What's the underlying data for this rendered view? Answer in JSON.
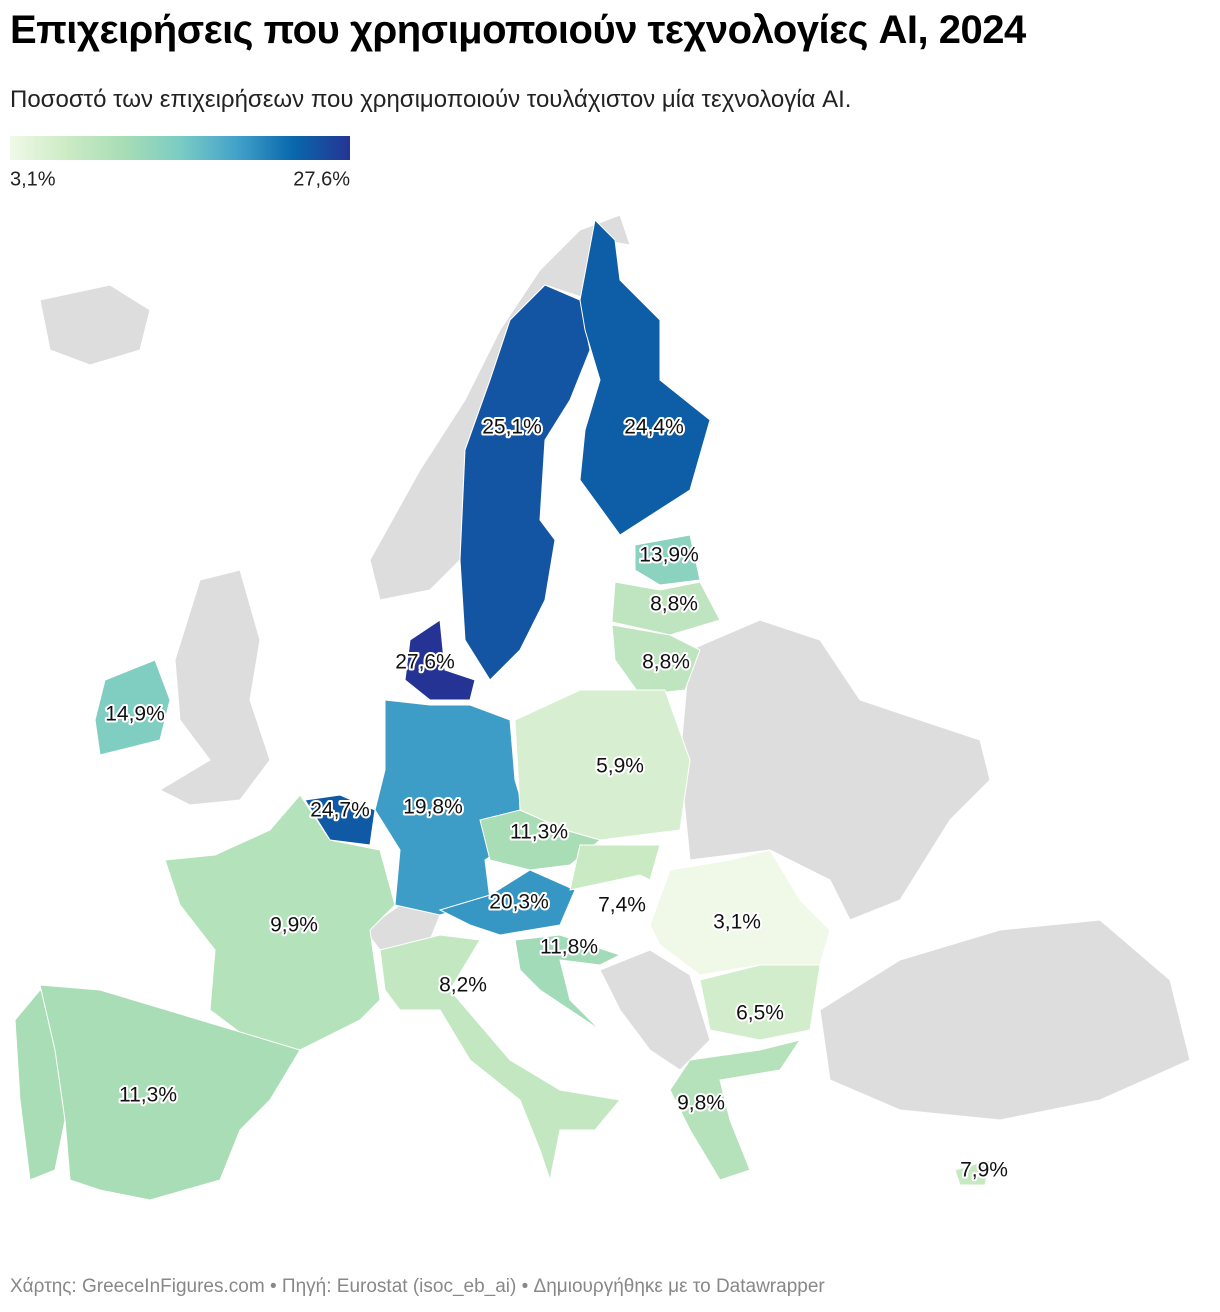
{
  "chart_data": {
    "type": "choropleth",
    "title": "Επιχειρήσεις που χρησιμοποιούν τεχνολογίες AI, 2024",
    "subtitle": "Ποσοστό των επιχειρήσεων που χρησιμοποιούν τουλάχιστον μία τεχνολογία AI.",
    "legend": {
      "range": [
        3.1,
        27.6
      ],
      "labels": [
        "3,1%",
        "27,6%"
      ]
    },
    "color_scale": [
      "#f0f9e8",
      "#ccebc5",
      "#a8ddb5",
      "#7bccc4",
      "#43a2ca",
      "#0868ac",
      "#253494"
    ],
    "no_data_color": "#dddddd",
    "values": [
      25.1,
      24.4,
      13.9,
      8.8,
      8.8,
      27.6,
      14.9,
      24.7,
      19.8,
      5.9,
      11.3,
      20.3,
      7.4,
      3.1,
      9.9,
      11.8,
      8.2,
      6.5,
      11.3,
      9.8,
      7.9
    ],
    "value_labels": [
      "25,1%",
      "24,4%",
      "13,9%",
      "8,8%",
      "8,8%",
      "27,6%",
      "14,9%",
      "24,7%",
      "19,8%",
      "5,9%",
      "11,3%",
      "20,3%",
      "7,4%",
      "3,1%",
      "9,9%",
      "11,8%",
      "8,2%",
      "6,5%",
      "11,3%",
      "9,8%",
      "7,9%"
    ],
    "footer": "Χάρτης: GreeceInFigures.com • Πηγή: Eurostat (isoc_eb_ai) • Δημιουργήθηκε με το Datawrapper"
  }
}
